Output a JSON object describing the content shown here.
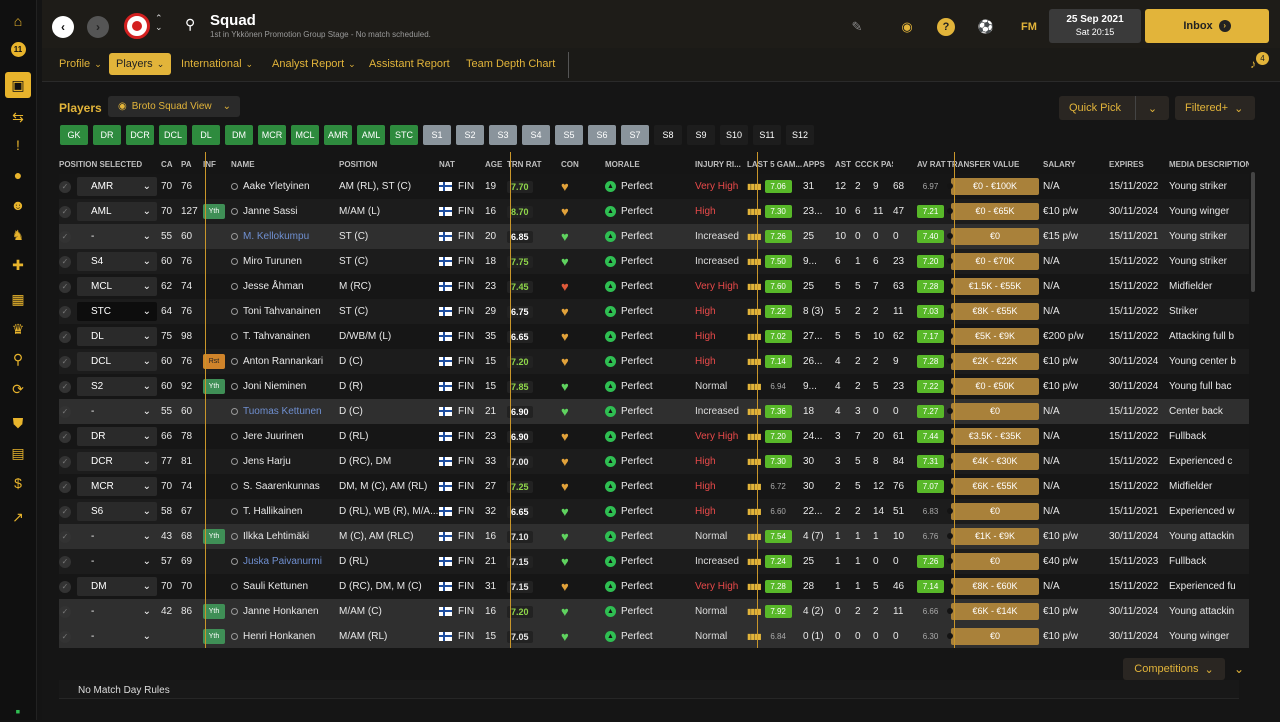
{
  "sidebar": {
    "items": [
      "home-icon",
      "calendar-11-icon",
      "squad-shirt-icon",
      "transfers-icon",
      "inbox-alert-icon",
      "ball-icon",
      "staff-icon",
      "training-icon",
      "medical-icon",
      "schedule-icon",
      "trophy-icon",
      "scouting-icon",
      "refresh-icon",
      "club-shield-icon",
      "finance-icon",
      "dollar-icon",
      "trend-icon",
      "bottom-icon"
    ],
    "calendar_num": "11"
  },
  "topbar": {
    "title": "Squad",
    "subtitle": "1st in Ykkönen Promotion Group Stage - No match scheduled.",
    "date": "25 Sep 2021",
    "time": "Sat 20:15",
    "inbox_label": "Inbox",
    "fm_label": "FM",
    "notif_count": "4"
  },
  "subnav": {
    "tabs": [
      "Profile",
      "Players",
      "International",
      "Analyst Report",
      "Assistant Report",
      "Team Depth Chart"
    ],
    "active": 1
  },
  "players": {
    "title": "Players",
    "view": "Broto Squad View",
    "quick_pick": "Quick Pick",
    "filtered": "Filtered+"
  },
  "position_buttons": [
    {
      "label": "GK",
      "style": "g"
    },
    {
      "label": "DR",
      "style": "g"
    },
    {
      "label": "DCR",
      "style": "g"
    },
    {
      "label": "DCL",
      "style": "g"
    },
    {
      "label": "DL",
      "style": "g"
    },
    {
      "label": "DM",
      "style": "g"
    },
    {
      "label": "MCR",
      "style": "g"
    },
    {
      "label": "MCL",
      "style": "g"
    },
    {
      "label": "AMR",
      "style": "g"
    },
    {
      "label": "AML",
      "style": "g"
    },
    {
      "label": "STC",
      "style": "g"
    },
    {
      "label": "S1",
      "style": "s"
    },
    {
      "label": "S2",
      "style": "s"
    },
    {
      "label": "S3",
      "style": "s"
    },
    {
      "label": "S4",
      "style": "s"
    },
    {
      "label": "S5",
      "style": "s"
    },
    {
      "label": "S6",
      "style": "s"
    },
    {
      "label": "S7",
      "style": "s"
    },
    {
      "label": "S8",
      "style": "k"
    },
    {
      "label": "S9",
      "style": "k"
    },
    {
      "label": "S10",
      "style": "k"
    },
    {
      "label": "S11",
      "style": "k"
    },
    {
      "label": "S12",
      "style": "k"
    }
  ],
  "columns": [
    "POSITION SELECTED",
    "CA",
    "PA",
    "INF",
    "NAME",
    "POSITION",
    "NAT",
    "AGE",
    "TRN RAT",
    "CON",
    "MORALE",
    "INJURY RI...",
    "LAST 5 GAM...",
    "APPS",
    "AST",
    "CCC",
    "K PAS",
    "AV RAT",
    "TRANSFER VALUE",
    "SALARY",
    "EXPIRES",
    "MEDIA DESCRIPTION"
  ],
  "rows": [
    {
      "sel": "AMR",
      "ca": "70",
      "pa": "76",
      "inf": "",
      "name": "Aake Yletyinen",
      "pos": "AM (RL), ST (C)",
      "nat": "FIN",
      "age": "19",
      "trn": "7.70",
      "con": "orange",
      "morale": "Perfect",
      "inj": "Very High",
      "last5": "7.06",
      "apps": "31",
      "ast": "12",
      "ccc": "2",
      "kpas": "9",
      "kp2": "68",
      "av": "6.97",
      "tv": "€0 - €100K",
      "sal": "N/A",
      "exp": "15/11/2022",
      "desc": "Young striker"
    },
    {
      "sel": "AML",
      "ca": "70",
      "pa": "127",
      "inf": "Yth",
      "name": "Janne Sassi",
      "pos": "M/AM (L)",
      "nat": "FIN",
      "age": "16",
      "trn": "8.70",
      "con": "orange",
      "morale": "Perfect",
      "inj": "High",
      "last5": "7.30",
      "apps": "23...",
      "ast": "10",
      "ccc": "6",
      "kpas": "11",
      "kp2": "47",
      "av": "7.21",
      "tv": "€0 - €65K",
      "sal": "€10 p/w",
      "exp": "30/11/2024",
      "desc": "Young winger"
    },
    {
      "sel": "-",
      "ca": "55",
      "pa": "60",
      "inf": "",
      "name": "M. Kellokumpu",
      "pos": "ST (C)",
      "nat": "FIN",
      "age": "20",
      "trn": "6.85",
      "con": "green",
      "morale": "Perfect",
      "inj": "Increased",
      "last5": "7.26",
      "apps": "25",
      "ast": "10",
      "ccc": "0",
      "kpas": "0",
      "kp2": "0",
      "av": "7.40",
      "tv": "€0",
      "sal": "€15 p/w",
      "exp": "15/11/2021",
      "desc": "Young striker"
    },
    {
      "sel": "S4",
      "ca": "60",
      "pa": "76",
      "inf": "",
      "name": "Miro Turunen",
      "pos": "ST (C)",
      "nat": "FIN",
      "age": "18",
      "trn": "7.75",
      "con": "green",
      "morale": "Perfect",
      "inj": "Increased",
      "last5": "7.50",
      "apps": "9...",
      "ast": "6",
      "ccc": "1",
      "kpas": "6",
      "kp2": "23",
      "av": "7.20",
      "tv": "€0 - €70K",
      "sal": "N/A",
      "exp": "15/11/2022",
      "desc": "Young striker"
    },
    {
      "sel": "MCL",
      "ca": "62",
      "pa": "74",
      "inf": "",
      "name": "Jesse Åhman",
      "pos": "M (RC)",
      "nat": "FIN",
      "age": "23",
      "trn": "7.45",
      "con": "red",
      "morale": "Perfect",
      "inj": "Very High",
      "last5": "7.60",
      "apps": "25",
      "ast": "5",
      "ccc": "5",
      "kpas": "7",
      "kp2": "63",
      "av": "7.28",
      "tv": "€1.5K - €55K",
      "sal": "N/A",
      "exp": "15/11/2022",
      "desc": "Midfielder"
    },
    {
      "sel": "STC",
      "ca": "64",
      "pa": "76",
      "inf": "",
      "name": "Toni Tahvanainen",
      "pos": "ST (C)",
      "nat": "FIN",
      "age": "29",
      "trn": "6.75",
      "con": "orange",
      "morale": "Perfect",
      "inj": "High",
      "last5": "7.22",
      "apps": "8 (3)",
      "ast": "5",
      "ccc": "2",
      "kpas": "2",
      "kp2": "11",
      "av": "7.03",
      "tv": "€8K - €55K",
      "sal": "N/A",
      "exp": "15/11/2022",
      "desc": "Striker"
    },
    {
      "sel": "DL",
      "ca": "75",
      "pa": "98",
      "inf": "",
      "name": "T. Tahvanainen",
      "pos": "D/WB/M (L)",
      "nat": "FIN",
      "age": "35",
      "trn": "6.65",
      "con": "orange",
      "morale": "Perfect",
      "inj": "High",
      "last5": "7.02",
      "apps": "27...",
      "ast": "5",
      "ccc": "5",
      "kpas": "10",
      "kp2": "62",
      "av": "7.17",
      "tv": "€5K - €9K",
      "sal": "€200 p/w",
      "exp": "15/11/2022",
      "desc": "Attacking full b"
    },
    {
      "sel": "DCL",
      "ca": "60",
      "pa": "76",
      "inf": "Rst",
      "name": "Anton Rannankari",
      "pos": "D (C)",
      "nat": "FIN",
      "age": "15",
      "trn": "7.20",
      "con": "orange",
      "morale": "Perfect",
      "inj": "High",
      "last5": "7.14",
      "apps": "26...",
      "ast": "4",
      "ccc": "2",
      "kpas": "2",
      "kp2": "9",
      "av": "7.28",
      "tv": "€2K - €22K",
      "sal": "€10 p/w",
      "exp": "30/11/2024",
      "desc": "Young center b"
    },
    {
      "sel": "S2",
      "ca": "60",
      "pa": "92",
      "inf": "Yth",
      "name": "Joni Nieminen",
      "pos": "D (R)",
      "nat": "FIN",
      "age": "15",
      "trn": "7.85",
      "con": "green",
      "morale": "Perfect",
      "inj": "Normal",
      "last5": "6.94",
      "apps": "9...",
      "ast": "4",
      "ccc": "2",
      "kpas": "5",
      "kp2": "23",
      "av": "7.22",
      "tv": "€0 - €50K",
      "sal": "€10 p/w",
      "exp": "30/11/2024",
      "desc": "Young full bac"
    },
    {
      "sel": "-",
      "ca": "55",
      "pa": "60",
      "inf": "",
      "name": "Tuomas Kettunen",
      "pos": "D (C)",
      "nat": "FIN",
      "age": "21",
      "trn": "6.90",
      "con": "green",
      "morale": "Perfect",
      "inj": "Increased",
      "last5": "7.36",
      "apps": "18",
      "ast": "4",
      "ccc": "3",
      "kpas": "0",
      "kp2": "0",
      "av": "7.27",
      "tv": "€0",
      "sal": "N/A",
      "exp": "15/11/2022",
      "desc": "Center back"
    },
    {
      "sel": "DR",
      "ca": "66",
      "pa": "78",
      "inf": "",
      "name": "Jere Juurinen",
      "pos": "D (RL)",
      "nat": "FIN",
      "age": "23",
      "trn": "6.90",
      "con": "orange",
      "morale": "Perfect",
      "inj": "Very High",
      "last5": "7.20",
      "apps": "24...",
      "ast": "3",
      "ccc": "7",
      "kpas": "20",
      "kp2": "61",
      "av": "7.44",
      "tv": "€3.5K - €35K",
      "sal": "N/A",
      "exp": "15/11/2022",
      "desc": "Fullback"
    },
    {
      "sel": "DCR",
      "ca": "77",
      "pa": "81",
      "inf": "",
      "name": "Jens Harju",
      "pos": "D (RC), DM",
      "nat": "FIN",
      "age": "33",
      "trn": "7.00",
      "con": "orange",
      "morale": "Perfect",
      "inj": "High",
      "last5": "7.30",
      "apps": "30",
      "ast": "3",
      "ccc": "5",
      "kpas": "8",
      "kp2": "84",
      "av": "7.31",
      "tv": "€4K - €30K",
      "sal": "N/A",
      "exp": "15/11/2022",
      "desc": "Experienced c"
    },
    {
      "sel": "MCR",
      "ca": "70",
      "pa": "74",
      "inf": "",
      "name": "S. Saarenkunnas",
      "pos": "DM, M (C), AM (RL)",
      "nat": "FIN",
      "age": "27",
      "trn": "7.25",
      "con": "orange",
      "morale": "Perfect",
      "inj": "High",
      "last5": "6.72",
      "apps": "30",
      "ast": "2",
      "ccc": "5",
      "kpas": "12",
      "kp2": "76",
      "av": "7.07",
      "tv": "€6K - €55K",
      "sal": "N/A",
      "exp": "15/11/2022",
      "desc": "Midfielder"
    },
    {
      "sel": "S6",
      "ca": "58",
      "pa": "67",
      "inf": "",
      "name": "T. Hallikainen",
      "pos": "D (RL), WB (R), M/A...",
      "nat": "FIN",
      "age": "32",
      "trn": "6.65",
      "con": "green",
      "morale": "Perfect",
      "inj": "High",
      "last5": "6.60",
      "apps": "22...",
      "ast": "2",
      "ccc": "2",
      "kpas": "14",
      "kp2": "51",
      "av": "6.83",
      "tv": "€0",
      "sal": "N/A",
      "exp": "15/11/2021",
      "desc": "Experienced w"
    },
    {
      "sel": "-",
      "ca": "43",
      "pa": "68",
      "inf": "Yth",
      "name": "Ilkka Lehtimäki",
      "pos": "M (C), AM (RLC)",
      "nat": "FIN",
      "age": "16",
      "trn": "7.10",
      "con": "green",
      "morale": "Perfect",
      "inj": "Normal",
      "last5": "7.54",
      "apps": "4 (7)",
      "ast": "1",
      "ccc": "1",
      "kpas": "1",
      "kp2": "10",
      "av": "6.76",
      "tv": "€1K - €9K",
      "sal": "€10 p/w",
      "exp": "30/11/2024",
      "desc": "Young attackin"
    },
    {
      "sel": "-",
      "ca": "57",
      "pa": "69",
      "inf": "",
      "name": "Juska Paivanurmi",
      "pos": "D (RL)",
      "nat": "FIN",
      "age": "21",
      "trn": "7.15",
      "con": "green",
      "morale": "Perfect",
      "inj": "Increased",
      "last5": "7.24",
      "apps": "25",
      "ast": "1",
      "ccc": "1",
      "kpas": "0",
      "kp2": "0",
      "av": "7.26",
      "tv": "€0",
      "sal": "€40 p/w",
      "exp": "15/11/2023",
      "desc": "Fullback"
    },
    {
      "sel": "DM",
      "ca": "70",
      "pa": "70",
      "inf": "",
      "name": "Sauli Kettunen",
      "pos": "D (RC), DM, M (C)",
      "nat": "FIN",
      "age": "31",
      "trn": "7.15",
      "con": "orange",
      "morale": "Perfect",
      "inj": "Very High",
      "last5": "7.28",
      "apps": "28",
      "ast": "1",
      "ccc": "1",
      "kpas": "5",
      "kp2": "46",
      "av": "7.14",
      "tv": "€8K - €60K",
      "sal": "N/A",
      "exp": "15/11/2022",
      "desc": "Experienced fu"
    },
    {
      "sel": "-",
      "ca": "42",
      "pa": "86",
      "inf": "Yth",
      "name": "Janne Honkanen",
      "pos": "M/AM (C)",
      "nat": "FIN",
      "age": "16",
      "trn": "7.20",
      "con": "green",
      "morale": "Perfect",
      "inj": "Normal",
      "last5": "7.92",
      "apps": "4 (2)",
      "ast": "0",
      "ccc": "2",
      "kpas": "2",
      "kp2": "11",
      "av": "6.66",
      "tv": "€6K - €14K",
      "sal": "€10 p/w",
      "exp": "30/11/2024",
      "desc": "Young attackin"
    },
    {
      "sel": "-",
      "ca": "",
      "pa": "",
      "inf": "Yth",
      "name": "Henri Honkanen",
      "pos": "M/AM (RL)",
      "nat": "FIN",
      "age": "15",
      "trn": "7.05",
      "con": "green",
      "morale": "Perfect",
      "inj": "Normal",
      "last5": "6.84",
      "apps": "0 (1)",
      "ast": "0",
      "ccc": "0",
      "kpas": "0",
      "kp2": "0",
      "av": "6.30",
      "tv": "€0",
      "sal": "€10 p/w",
      "exp": "30/11/2024",
      "desc": "Young winger"
    }
  ],
  "bottom": {
    "competitions": "Competitions",
    "no_match_day": "No Match Day Rules"
  },
  "colors": {
    "accent": "#e2b43a",
    "green": "#2e8b3e"
  }
}
